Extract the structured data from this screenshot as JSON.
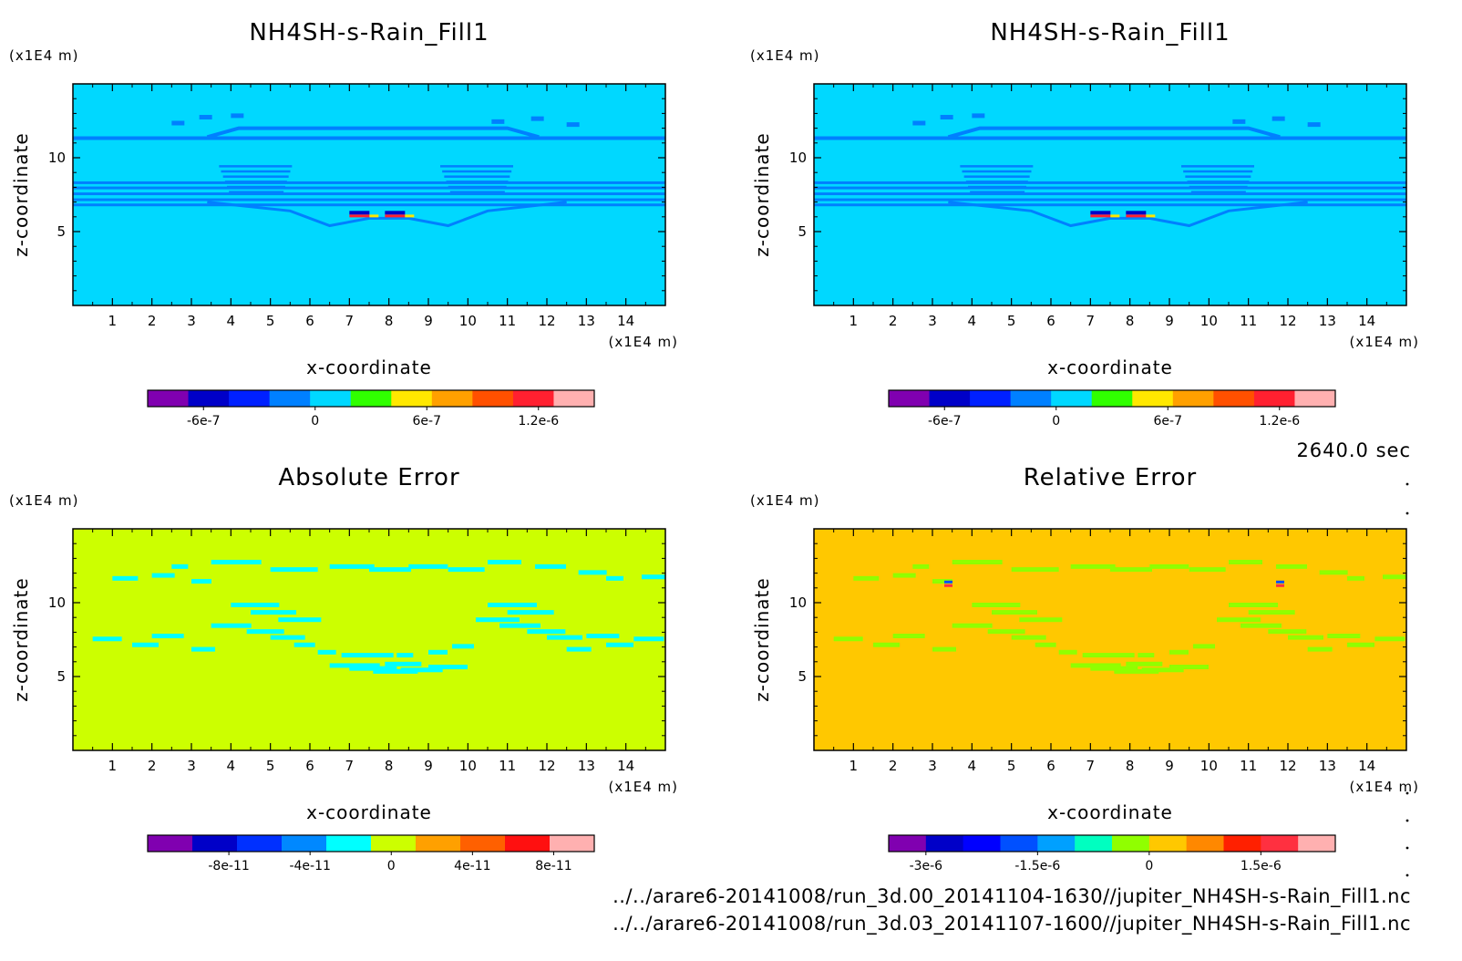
{
  "time_label": "2640.0 sec",
  "files": [
    "../../arare6-20141008/run_3d.00_20141104-1630//jupiter_NH4SH-s-Rain_Fill1.nc",
    "../../arare6-20141008/run_3d.03_20141107-1600//jupiter_NH4SH-s-Rain_Fill1.nc"
  ],
  "chart_data": [
    {
      "type": "heatmap",
      "title": "NH4SH-s-Rain_Fill1",
      "xlabel": "x-coordinate",
      "ylabel": "z-coordinate",
      "x_unit": "(x1E4 m)",
      "z_unit": "(x1E4 m)",
      "xlim": [
        0,
        15
      ],
      "ylim": [
        0,
        15
      ],
      "xticks": [
        "1",
        "2",
        "3",
        "4",
        "5",
        "6",
        "7",
        "8",
        "9",
        "10",
        "11",
        "12",
        "13",
        "14"
      ],
      "yticks": [
        "5",
        "10"
      ],
      "background_color": "#00d8ff",
      "colorbar": {
        "colors": [
          "#8000b0",
          "#0000c8",
          "#0020ff",
          "#0080ff",
          "#00d8ff",
          "#30ff00",
          "#ffe800",
          "#ffa000",
          "#ff5000",
          "#ff2030",
          "#ffb0b0"
        ],
        "tick_labels": [
          "-6e-7",
          "0",
          "6e-7",
          "1.2e-6"
        ],
        "tick_values": [
          -6e-07,
          0,
          6e-07,
          1.2e-06
        ],
        "range": [
          -9e-07,
          1.5e-06
        ]
      }
    },
    {
      "type": "heatmap",
      "title": "NH4SH-s-Rain_Fill1",
      "xlabel": "x-coordinate",
      "ylabel": "z-coordinate",
      "x_unit": "(x1E4 m)",
      "z_unit": "(x1E4 m)",
      "xlim": [
        0,
        15
      ],
      "ylim": [
        0,
        15
      ],
      "xticks": [
        "1",
        "2",
        "3",
        "4",
        "5",
        "6",
        "7",
        "8",
        "9",
        "10",
        "11",
        "12",
        "13",
        "14"
      ],
      "yticks": [
        "5",
        "10"
      ],
      "background_color": "#00d8ff",
      "colorbar": {
        "colors": [
          "#8000b0",
          "#0000c8",
          "#0020ff",
          "#0080ff",
          "#00d8ff",
          "#30ff00",
          "#ffe800",
          "#ffa000",
          "#ff5000",
          "#ff2030",
          "#ffb0b0"
        ],
        "tick_labels": [
          "-6e-7",
          "0",
          "6e-7",
          "1.2e-6"
        ],
        "tick_values": [
          -6e-07,
          0,
          6e-07,
          1.2e-06
        ],
        "range": [
          -9e-07,
          1.5e-06
        ]
      }
    },
    {
      "type": "heatmap",
      "title": "Absolute Error",
      "xlabel": "x-coordinate",
      "ylabel": "z-coordinate",
      "x_unit": "(x1E4 m)",
      "z_unit": "(x1E4 m)",
      "xlim": [
        0,
        15
      ],
      "ylim": [
        0,
        15
      ],
      "xticks": [
        "1",
        "2",
        "3",
        "4",
        "5",
        "6",
        "7",
        "8",
        "9",
        "10",
        "11",
        "12",
        "13",
        "14"
      ],
      "yticks": [
        "5",
        "10"
      ],
      "background_color": "#ccff00",
      "colorbar": {
        "colors": [
          "#8000b0",
          "#0000c8",
          "#0030ff",
          "#0088ff",
          "#00ffff",
          "#ccff00",
          "#ffa000",
          "#ff6000",
          "#ff1010",
          "#ffb0b0"
        ],
        "tick_labels": [
          "-8e-11",
          "-4e-11",
          "0",
          "4e-11",
          "8e-11"
        ],
        "tick_values": [
          -8e-11,
          -4e-11,
          0,
          4e-11,
          8e-11
        ],
        "range": [
          -1.2e-10,
          1e-10
        ]
      }
    },
    {
      "type": "heatmap",
      "title": "Relative Error",
      "xlabel": "x-coordinate",
      "ylabel": "z-coordinate",
      "x_unit": "(x1E4 m)",
      "z_unit": "(x1E4 m)",
      "xlim": [
        0,
        15
      ],
      "ylim": [
        0,
        15
      ],
      "xticks": [
        "1",
        "2",
        "3",
        "4",
        "5",
        "6",
        "7",
        "8",
        "9",
        "10",
        "11",
        "12",
        "13",
        "14"
      ],
      "yticks": [
        "5",
        "10"
      ],
      "background_color": "#ffc800",
      "colorbar": {
        "colors": [
          "#8000b0",
          "#0000c8",
          "#0000ff",
          "#0050ff",
          "#00a0ff",
          "#00ffc0",
          "#90ff00",
          "#ffc800",
          "#ff8800",
          "#ff2000",
          "#ff3040",
          "#ffb0b0"
        ],
        "tick_labels": [
          "-3e-6",
          "-1.5e-6",
          "0",
          "1.5e-6"
        ],
        "tick_values": [
          -3e-06,
          -1.5e-06,
          0,
          1.5e-06
        ],
        "range": [
          -3.5e-06,
          2.5e-06
        ]
      }
    }
  ]
}
